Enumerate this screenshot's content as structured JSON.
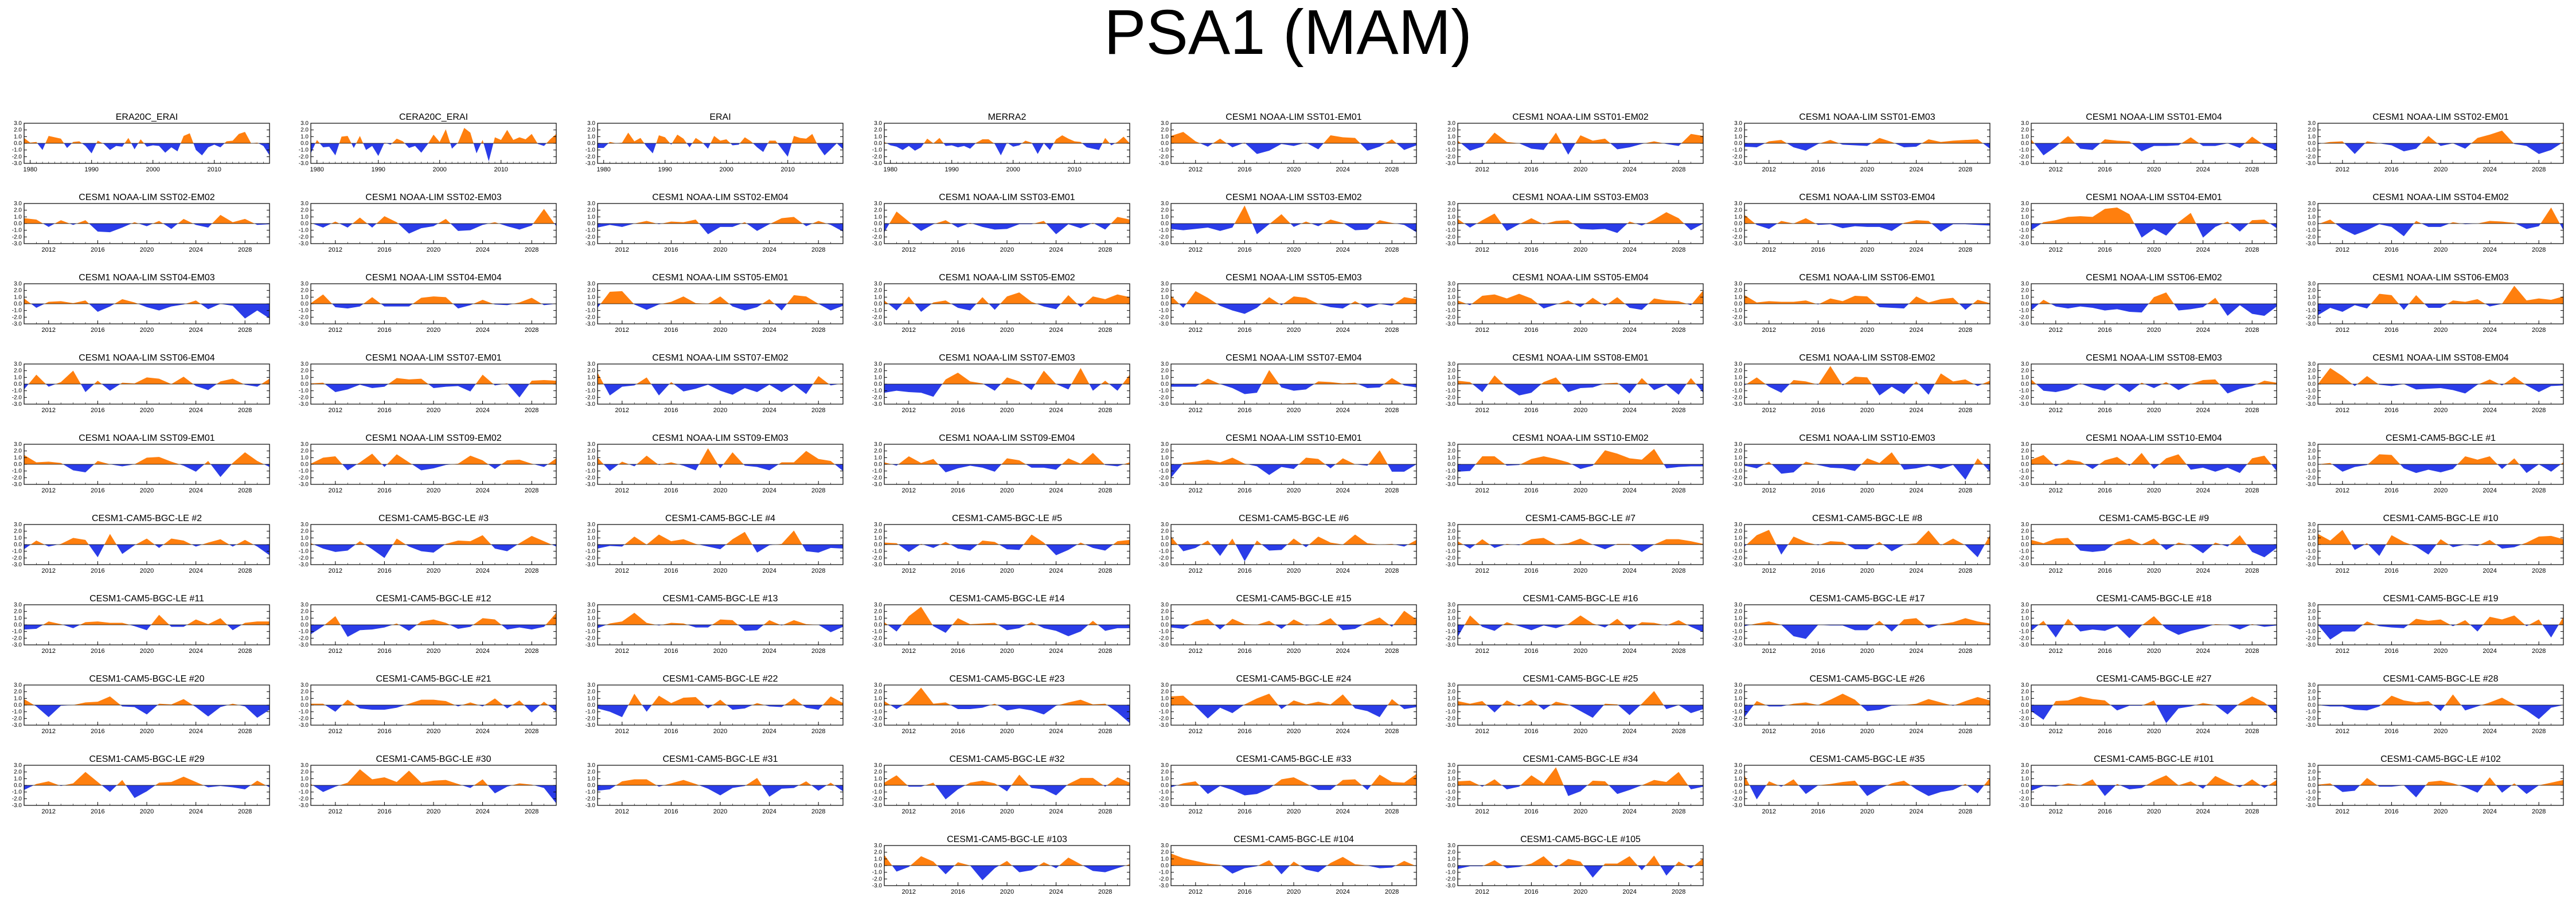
{
  "page": {
    "title": "PSA1 (MAM)"
  },
  "colors": {
    "positive": "#ff7f0e",
    "negative": "#2a3ce8",
    "axis": "#000000"
  },
  "chart_data": {
    "type": "area",
    "title": "PSA1 (MAM)",
    "y_ticks": [
      "3.0",
      "2.0",
      "1.0",
      "0.0",
      "-1.0",
      "-2.0",
      "-3.0"
    ],
    "ylim": [
      -3,
      3
    ],
    "obs_ticks": [
      "1980",
      "1990",
      "2000",
      "2010"
    ],
    "obs_xlim": [
      1979,
      2019
    ],
    "proj_ticks": [
      "2012",
      "2016",
      "2020",
      "2024",
      "2028"
    ],
    "proj_xlim": [
      2010,
      2030
    ],
    "panels": [
      {
        "title": "ERA20C_ERAI",
        "period": "obs"
      },
      {
        "title": "CERA20C_ERAI",
        "period": "obs"
      },
      {
        "title": "ERAI",
        "period": "obs"
      },
      {
        "title": "MERRA2",
        "period": "obs"
      },
      {
        "title": "CESM1 NOAA-LIM SST01-EM01",
        "period": "proj"
      },
      {
        "title": "CESM1 NOAA-LIM SST01-EM02",
        "period": "proj"
      },
      {
        "title": "CESM1 NOAA-LIM SST01-EM03",
        "period": "proj"
      },
      {
        "title": "CESM1 NOAA-LIM SST01-EM04",
        "period": "proj"
      },
      {
        "title": "CESM1 NOAA-LIM SST02-EM01",
        "period": "proj"
      },
      {
        "title": "CESM1 NOAA-LIM SST02-EM02",
        "period": "proj"
      },
      {
        "title": "CESM1 NOAA-LIM SST02-EM03",
        "period": "proj"
      },
      {
        "title": "CESM1 NOAA-LIM SST02-EM04",
        "period": "proj"
      },
      {
        "title": "CESM1 NOAA-LIM SST03-EM01",
        "period": "proj"
      },
      {
        "title": "CESM1 NOAA-LIM SST03-EM02",
        "period": "proj"
      },
      {
        "title": "CESM1 NOAA-LIM SST03-EM03",
        "period": "proj"
      },
      {
        "title": "CESM1 NOAA-LIM SST03-EM04",
        "period": "proj"
      },
      {
        "title": "CESM1 NOAA-LIM SST04-EM01",
        "period": "proj"
      },
      {
        "title": "CESM1 NOAA-LIM SST04-EM02",
        "period": "proj"
      },
      {
        "title": "CESM1 NOAA-LIM SST04-EM03",
        "period": "proj"
      },
      {
        "title": "CESM1 NOAA-LIM SST04-EM04",
        "period": "proj"
      },
      {
        "title": "CESM1 NOAA-LIM SST05-EM01",
        "period": "proj"
      },
      {
        "title": "CESM1 NOAA-LIM SST05-EM02",
        "period": "proj"
      },
      {
        "title": "CESM1 NOAA-LIM SST05-EM03",
        "period": "proj"
      },
      {
        "title": "CESM1 NOAA-LIM SST05-EM04",
        "period": "proj"
      },
      {
        "title": "CESM1 NOAA-LIM SST06-EM01",
        "period": "proj"
      },
      {
        "title": "CESM1 NOAA-LIM SST06-EM02",
        "period": "proj"
      },
      {
        "title": "CESM1 NOAA-LIM SST06-EM03",
        "period": "proj"
      },
      {
        "title": "CESM1 NOAA-LIM SST06-EM04",
        "period": "proj"
      },
      {
        "title": "CESM1 NOAA-LIM SST07-EM01",
        "period": "proj"
      },
      {
        "title": "CESM1 NOAA-LIM SST07-EM02",
        "period": "proj"
      },
      {
        "title": "CESM1 NOAA-LIM SST07-EM03",
        "period": "proj"
      },
      {
        "title": "CESM1 NOAA-LIM SST07-EM04",
        "period": "proj"
      },
      {
        "title": "CESM1 NOAA-LIM SST08-EM01",
        "period": "proj"
      },
      {
        "title": "CESM1 NOAA-LIM SST08-EM02",
        "period": "proj"
      },
      {
        "title": "CESM1 NOAA-LIM SST08-EM03",
        "period": "proj"
      },
      {
        "title": "CESM1 NOAA-LIM SST08-EM04",
        "period": "proj"
      },
      {
        "title": "CESM1 NOAA-LIM SST09-EM01",
        "period": "proj"
      },
      {
        "title": "CESM1 NOAA-LIM SST09-EM02",
        "period": "proj"
      },
      {
        "title": "CESM1 NOAA-LIM SST09-EM03",
        "period": "proj"
      },
      {
        "title": "CESM1 NOAA-LIM SST09-EM04",
        "period": "proj"
      },
      {
        "title": "CESM1 NOAA-LIM SST10-EM01",
        "period": "proj"
      },
      {
        "title": "CESM1 NOAA-LIM SST10-EM02",
        "period": "proj"
      },
      {
        "title": "CESM1 NOAA-LIM SST10-EM03",
        "period": "proj"
      },
      {
        "title": "CESM1 NOAA-LIM SST10-EM04",
        "period": "proj"
      },
      {
        "title": "CESM1-CAM5-BGC-LE #1",
        "period": "proj"
      },
      {
        "title": "CESM1-CAM5-BGC-LE #2",
        "period": "proj"
      },
      {
        "title": "CESM1-CAM5-BGC-LE #3",
        "period": "proj"
      },
      {
        "title": "CESM1-CAM5-BGC-LE #4",
        "period": "proj"
      },
      {
        "title": "CESM1-CAM5-BGC-LE #5",
        "period": "proj"
      },
      {
        "title": "CESM1-CAM5-BGC-LE #6",
        "period": "proj"
      },
      {
        "title": "CESM1-CAM5-BGC-LE #7",
        "period": "proj"
      },
      {
        "title": "CESM1-CAM5-BGC-LE #8",
        "period": "proj"
      },
      {
        "title": "CESM1-CAM5-BGC-LE #9",
        "period": "proj"
      },
      {
        "title": "CESM1-CAM5-BGC-LE #10",
        "period": "proj"
      },
      {
        "title": "CESM1-CAM5-BGC-LE #11",
        "period": "proj"
      },
      {
        "title": "CESM1-CAM5-BGC-LE #12",
        "period": "proj"
      },
      {
        "title": "CESM1-CAM5-BGC-LE #13",
        "period": "proj"
      },
      {
        "title": "CESM1-CAM5-BGC-LE #14",
        "period": "proj"
      },
      {
        "title": "CESM1-CAM5-BGC-LE #15",
        "period": "proj"
      },
      {
        "title": "CESM1-CAM5-BGC-LE #16",
        "period": "proj"
      },
      {
        "title": "CESM1-CAM5-BGC-LE #17",
        "period": "proj"
      },
      {
        "title": "CESM1-CAM5-BGC-LE #18",
        "period": "proj"
      },
      {
        "title": "CESM1-CAM5-BGC-LE #19",
        "period": "proj"
      },
      {
        "title": "CESM1-CAM5-BGC-LE #20",
        "period": "proj"
      },
      {
        "title": "CESM1-CAM5-BGC-LE #21",
        "period": "proj"
      },
      {
        "title": "CESM1-CAM5-BGC-LE #22",
        "period": "proj"
      },
      {
        "title": "CESM1-CAM5-BGC-LE #23",
        "period": "proj"
      },
      {
        "title": "CESM1-CAM5-BGC-LE #24",
        "period": "proj"
      },
      {
        "title": "CESM1-CAM5-BGC-LE #25",
        "period": "proj"
      },
      {
        "title": "CESM1-CAM5-BGC-LE #26",
        "period": "proj"
      },
      {
        "title": "CESM1-CAM5-BGC-LE #27",
        "period": "proj"
      },
      {
        "title": "CESM1-CAM5-BGC-LE #28",
        "period": "proj"
      },
      {
        "title": "CESM1-CAM5-BGC-LE #29",
        "period": "proj"
      },
      {
        "title": "CESM1-CAM5-BGC-LE #30",
        "period": "proj"
      },
      {
        "title": "CESM1-CAM5-BGC-LE #31",
        "period": "proj"
      },
      {
        "title": "CESM1-CAM5-BGC-LE #32",
        "period": "proj"
      },
      {
        "title": "CESM1-CAM5-BGC-LE #33",
        "period": "proj"
      },
      {
        "title": "CESM1-CAM5-BGC-LE #34",
        "period": "proj"
      },
      {
        "title": "CESM1-CAM5-BGC-LE #35",
        "period": "proj"
      },
      {
        "title": "CESM1-CAM5-BGC-LE #101",
        "period": "proj"
      },
      {
        "title": "CESM1-CAM5-BGC-LE #102",
        "period": "proj"
      },
      {
        "title": "CESM1-CAM5-BGC-LE #103",
        "period": "proj"
      },
      {
        "title": "CESM1-CAM5-BGC-LE #104",
        "period": "proj"
      },
      {
        "title": "CESM1-CAM5-BGC-LE #105",
        "period": "proj"
      }
    ]
  }
}
